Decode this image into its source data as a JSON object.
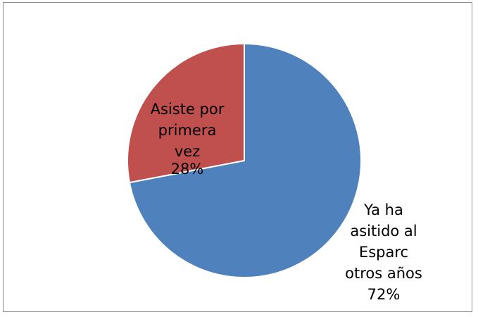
{
  "chart_data": {
    "type": "pie",
    "title": "",
    "slices": [
      {
        "name": "Ya ha asitido al Esparc otros años",
        "label_lines": [
          "Ya ha",
          "asitido al",
          "Esparc",
          "otros años"
        ],
        "value": 72,
        "percent_label": "72%",
        "color": "#4f81bd"
      },
      {
        "name": "Asiste por primera vez",
        "label_lines": [
          "Asiste por",
          "primera",
          "vez"
        ],
        "value": 28,
        "percent_label": "28%",
        "color": "#c0504d"
      }
    ],
    "start_angle_deg": 0,
    "direction": "clockwise",
    "legend": "none",
    "slice_border_color": "#ffffff"
  }
}
